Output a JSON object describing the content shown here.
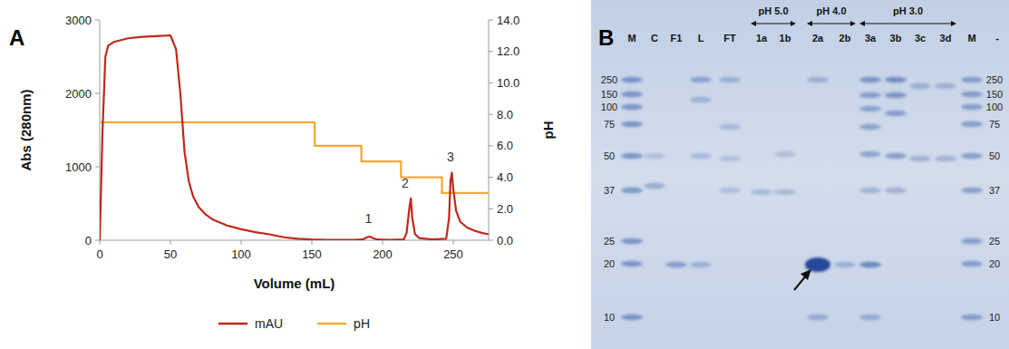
{
  "chart_data": {
    "type": "line",
    "panel_label": "A",
    "x_label": "Volume (mL)",
    "y_label": "Abs (280nm)",
    "y2_label": "pH",
    "xlim": [
      0,
      275
    ],
    "xticks": [
      0,
      50,
      100,
      150,
      200,
      250
    ],
    "ylim": [
      0,
      3000
    ],
    "yticks": [
      0,
      1000,
      2000,
      3000
    ],
    "y2lim": [
      0,
      14
    ],
    "y2ticks": [
      {
        "value": 0,
        "label": "0.0"
      },
      {
        "value": 2,
        "label": "2.0"
      },
      {
        "value": 4,
        "label": "4.0"
      },
      {
        "value": 6,
        "label": "6.0"
      },
      {
        "value": 8,
        "label": "8.0"
      },
      {
        "value": 10,
        "label": "10.0"
      },
      {
        "value": 12,
        "label": "12.0"
      },
      {
        "value": 14,
        "label": "14.0"
      }
    ],
    "legend": "bottom",
    "series": [
      {
        "name": "mAU",
        "color": "#c0281a",
        "x": [
          0,
          2,
          4,
          6,
          10,
          20,
          30,
          40,
          50,
          54,
          57,
          60,
          63,
          66,
          70,
          75,
          80,
          90,
          100,
          110,
          120,
          130,
          140,
          150,
          160,
          170,
          180,
          186,
          189,
          191,
          193,
          196,
          205,
          215,
          217,
          219,
          220,
          221,
          223,
          226,
          235,
          245,
          247,
          248,
          249,
          250,
          252,
          255,
          260,
          265,
          270,
          275
        ],
        "values": [
          0,
          1500,
          2500,
          2650,
          2700,
          2750,
          2770,
          2780,
          2790,
          2600,
          2000,
          1200,
          800,
          600,
          450,
          350,
          280,
          200,
          150,
          110,
          80,
          40,
          20,
          10,
          5,
          5,
          5,
          10,
          40,
          50,
          30,
          10,
          5,
          10,
          100,
          450,
          570,
          300,
          80,
          30,
          10,
          20,
          300,
          800,
          920,
          700,
          400,
          250,
          170,
          130,
          100,
          80
        ]
      },
      {
        "name": "pH",
        "color": "#f5a833",
        "axis": "y2",
        "x": [
          0,
          152,
          152,
          185,
          185,
          213,
          213,
          242,
          242,
          275
        ],
        "values": [
          7.5,
          7.5,
          6.0,
          6.0,
          5.0,
          5.0,
          4.0,
          4.0,
          3.0,
          3.0
        ]
      }
    ],
    "annotations": [
      {
        "text": "1",
        "x": 190,
        "y": 230
      },
      {
        "text": "2",
        "x": 216,
        "y": 720
      },
      {
        "text": "3",
        "x": 248,
        "y": 1080
      }
    ]
  },
  "gel": {
    "panel_label": "B",
    "lanes": [
      "M",
      "C",
      "F1",
      "L",
      "FT",
      "1a",
      "1b",
      "2a",
      "2b",
      "3a",
      "3b",
      "3c",
      "3d",
      "M",
      "-"
    ],
    "groups": [
      {
        "label": "pH 5.0",
        "lanes": [
          5,
          6
        ]
      },
      {
        "label": "pH 4.0",
        "lanes": [
          7,
          8
        ]
      },
      {
        "label": "pH 3.0",
        "lanes": [
          9,
          12
        ]
      }
    ],
    "markers_left": [
      250,
      150,
      100,
      75,
      50,
      37,
      25,
      20,
      10
    ],
    "markers_right": [
      250,
      150,
      100,
      75,
      50,
      37,
      25,
      20,
      10
    ]
  }
}
